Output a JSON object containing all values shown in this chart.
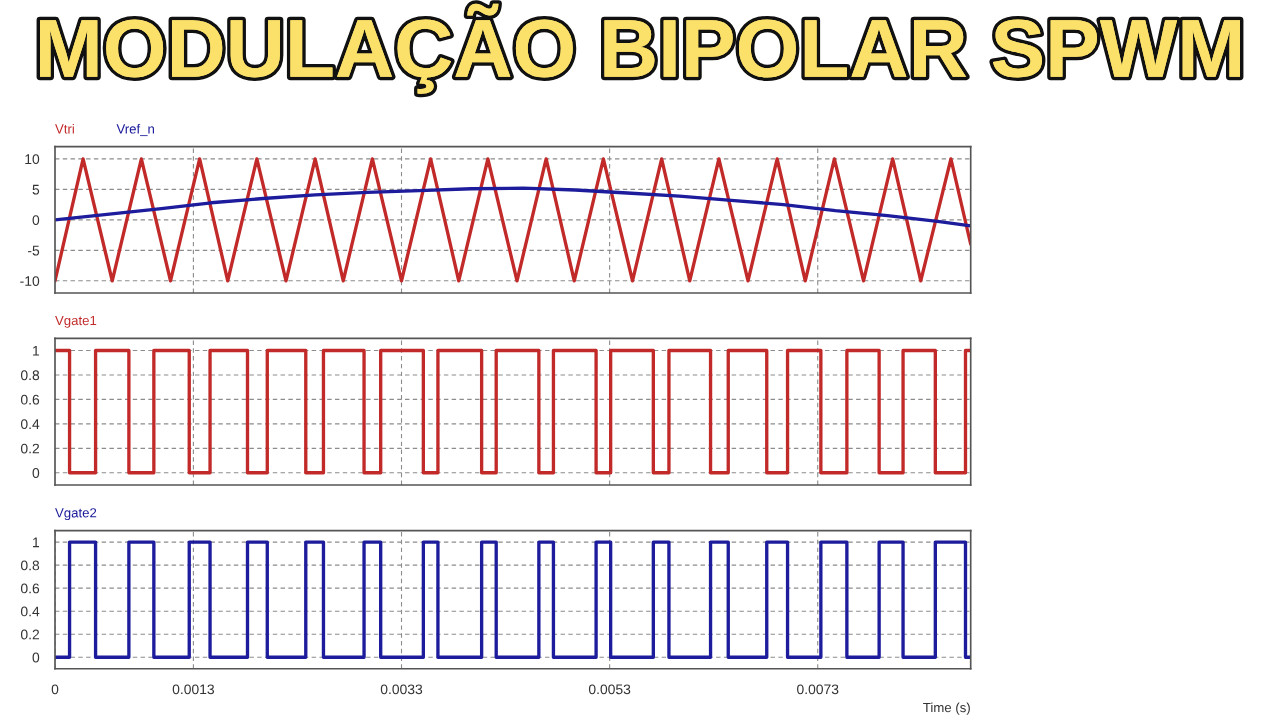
{
  "chart_data": [
    {
      "type": "line",
      "title": "MODULAÇÃO BIPOLAR SPWM",
      "series": [
        {
          "name": "Vtri",
          "color": "#c22a2a",
          "x": [
            0,
            0.00027,
            0.00055,
            0.00083,
            0.00111,
            0.00139,
            0.00166,
            0.00194,
            0.00222,
            0.0025,
            0.00277,
            0.00305,
            0.00333,
            0.00361,
            0.00388,
            0.00416,
            0.00444,
            0.00472,
            0.00499,
            0.00527,
            0.00555,
            0.00583,
            0.0061,
            0.00638,
            0.00666,
            0.00694,
            0.00721,
            0.00749,
            0.00777,
            0.00805,
            0.00832,
            0.00861,
            0.0088
          ],
          "values": [
            -10,
            10,
            -10,
            10,
            -10,
            10,
            -10,
            10,
            -10,
            10,
            -10,
            10,
            -10,
            10,
            -10,
            10,
            -10,
            10,
            -10,
            10,
            -10,
            10,
            -10,
            10,
            -10,
            10,
            -10,
            10,
            -10,
            10,
            -10,
            10,
            -4
          ]
        },
        {
          "name": "Vref_n",
          "color": "#1c1c9c",
          "x": [
            0,
            0.0005,
            0.001,
            0.0015,
            0.002,
            0.0025,
            0.003,
            0.0035,
            0.004,
            0.0045,
            0.005,
            0.0055,
            0.006,
            0.0065,
            0.007,
            0.0075,
            0.008,
            0.0085,
            0.0088
          ],
          "values": [
            0,
            0.9,
            1.8,
            2.8,
            3.5,
            4.1,
            4.5,
            4.8,
            5.1,
            5.2,
            4.9,
            4.4,
            3.9,
            3.2,
            2.5,
            1.5,
            0.7,
            -0.3,
            -1.0
          ]
        }
      ],
      "xlim": [
        0,
        0.0088
      ],
      "xticks": [
        {
          "value": 0.00133,
          "label": null
        },
        {
          "value": 0.00333,
          "label": null
        },
        {
          "value": 0.00533,
          "label": null
        },
        {
          "value": 0.00733,
          "label": null
        }
      ],
      "ylim": [
        -12,
        12
      ],
      "yticks": [
        -10,
        -5,
        0,
        5,
        10
      ],
      "grid": true,
      "legend": "top left",
      "tick_labels": "y"
    },
    {
      "type": "step",
      "series": [
        {
          "name": "Vgate1",
          "color": "#c22a2a",
          "x": [
            0,
            0.00014,
            0.00039,
            0.00071,
            0.00095,
            0.00129,
            0.00149,
            0.00185,
            0.00204,
            0.00241,
            0.00258,
            0.00297,
            0.00313,
            0.00354,
            0.00368,
            0.0041,
            0.00424,
            0.00465,
            0.00479,
            0.0052,
            0.00534,
            0.00575,
            0.0059,
            0.0063,
            0.00647,
            0.00684,
            0.00704,
            0.00736,
            0.00761,
            0.00792,
            0.00815,
            0.00846,
            0.00875,
            0.0088
          ],
          "values": [
            1,
            0,
            1,
            0,
            1,
            0,
            1,
            0,
            1,
            0,
            1,
            0,
            1,
            0,
            1,
            0,
            1,
            0,
            1,
            0,
            1,
            0,
            1,
            0,
            1,
            0,
            1,
            0,
            1,
            0,
            1,
            0,
            1,
            1
          ]
        }
      ],
      "xlim": [
        0,
        0.0088
      ],
      "xticks": [
        {
          "value": 0.00133,
          "label": null
        },
        {
          "value": 0.00333,
          "label": null
        },
        {
          "value": 0.00533,
          "label": null
        },
        {
          "value": 0.00733,
          "label": null
        }
      ],
      "ylim": [
        -0.1,
        1.1
      ],
      "yticks": [
        0,
        0.2,
        0.4,
        0.6,
        0.8,
        1
      ],
      "grid": true,
      "legend": "top left",
      "tick_labels": "y"
    },
    {
      "type": "step",
      "xlabel": "Time (s)",
      "series": [
        {
          "name": "Vgate2",
          "color": "#1c1c9c",
          "x": [
            0,
            0.00014,
            0.00039,
            0.00071,
            0.00095,
            0.00129,
            0.00149,
            0.00185,
            0.00204,
            0.00241,
            0.00258,
            0.00297,
            0.00313,
            0.00354,
            0.00368,
            0.0041,
            0.00424,
            0.00465,
            0.00479,
            0.0052,
            0.00534,
            0.00575,
            0.0059,
            0.0063,
            0.00647,
            0.00684,
            0.00704,
            0.00736,
            0.00761,
            0.00792,
            0.00815,
            0.00846,
            0.00875,
            0.0088
          ],
          "values": [
            0,
            1,
            0,
            1,
            0,
            1,
            0,
            1,
            0,
            1,
            0,
            1,
            0,
            1,
            0,
            1,
            0,
            1,
            0,
            1,
            0,
            1,
            0,
            1,
            0,
            1,
            0,
            1,
            0,
            1,
            0,
            1,
            0,
            0
          ]
        }
      ],
      "xlim": [
        0,
        0.0088
      ],
      "xticks": [
        0,
        {
          "value": 0.00133,
          "label": "0.0013"
        },
        {
          "value": 0.00333,
          "label": "0.0033"
        },
        {
          "value": 0.00533,
          "label": "0.0053"
        },
        {
          "value": 0.00733,
          "label": "0.0073"
        }
      ],
      "ylim": [
        -0.1,
        1.1
      ],
      "yticks": [
        0,
        0.2,
        0.4,
        0.6,
        0.8,
        1
      ],
      "grid": true,
      "legend": "top left"
    }
  ]
}
